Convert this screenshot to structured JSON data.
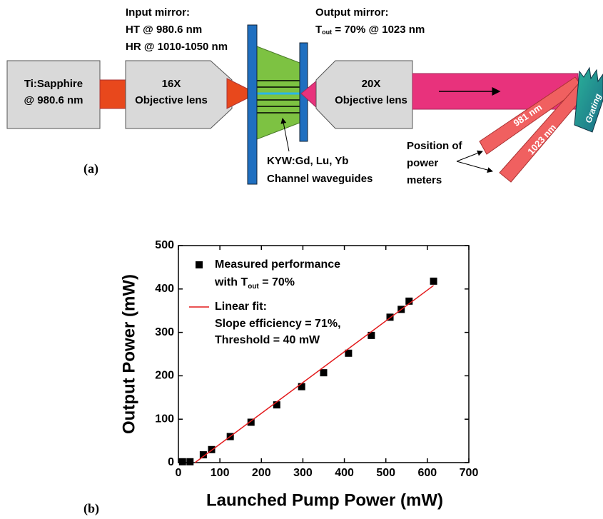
{
  "diagram": {
    "panel_a": "(a)",
    "panel_b": "(b)",
    "source": [
      "Ti:Sapphire",
      "@ 980.6 nm"
    ],
    "lens1": [
      "16X",
      "Objective lens"
    ],
    "lens2": [
      "20X",
      "Objective lens"
    ],
    "input_mirror": [
      "Input mirror:",
      "HT @ 980.6 nm",
      "HR @ 1010-1050 nm"
    ],
    "output_mirror": {
      "title": "Output mirror:",
      "symbol": "T",
      "subscript": "out",
      "rest": " = 70% @ 1023 nm"
    },
    "crystal": [
      "KYW:Gd, Lu, Yb",
      "Channel waveguides"
    ],
    "meters": [
      "Position of",
      "power",
      "meters"
    ],
    "beams": [
      "981 nm",
      "1023 nm"
    ],
    "grating": "Grating"
  },
  "chart_data": {
    "type": "scatter",
    "xlabel": "Launched Pump Power (mW)",
    "ylabel": "Output Power (mW)",
    "xlim": [
      0,
      700
    ],
    "xticks": [
      0,
      100,
      200,
      300,
      400,
      500,
      600,
      700
    ],
    "ylim": [
      0,
      500
    ],
    "yticks": [
      0,
      100,
      200,
      300,
      400,
      500
    ],
    "series": [
      {
        "name": "Measured performance",
        "color": "#000000",
        "style": "marker",
        "x": [
          10,
          28,
          60,
          80,
          125,
          175,
          237,
          297,
          350,
          410,
          465,
          510,
          537,
          556,
          615
        ],
        "values": [
          2,
          2,
          18,
          30,
          60,
          93,
          133,
          175,
          207,
          252,
          293,
          335,
          353,
          372,
          418
        ]
      },
      {
        "name": "Linear fit:",
        "color": "#e31a1c",
        "style": "line",
        "x": [
          40,
          615
        ],
        "values": [
          0,
          408
        ]
      }
    ],
    "legend_extra": {
      "line1": "with T",
      "sub": "out",
      "line1_rest": " = 70%",
      "fit_lines": [
        "Slope efficiency = 71%,",
        "Threshold = 40 mW"
      ]
    }
  }
}
